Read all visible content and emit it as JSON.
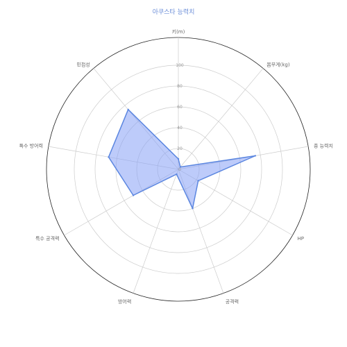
{
  "chart_data": {
    "type": "radar",
    "title": "아쿠스타 능력치",
    "axes": [
      "키(m)",
      "몸무게(kg)",
      "종 능력치",
      "HP",
      "공격력",
      "방어력",
      "특수 공격력",
      "특수 방어력",
      "민첩성"
    ],
    "ticks": [
      "0",
      "20",
      "40",
      "60",
      "80",
      "100"
    ],
    "rlim": [
      0,
      100
    ],
    "series": [
      {
        "values": [
          10,
          3,
          75,
          22,
          40,
          5,
          50,
          68,
          75
        ]
      }
    ],
    "grid": true,
    "colors": {
      "fill": "rgba(135,160,245,0.55)",
      "stroke": "#5b86e0",
      "grid": "#cccccc",
      "outer": "#222222"
    }
  }
}
